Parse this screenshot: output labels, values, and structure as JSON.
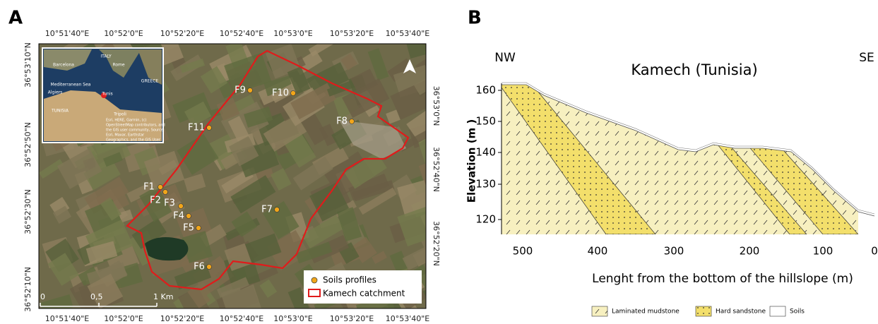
{
  "panel_a": {
    "label": "A",
    "top_labels": [
      "10°51'40\"E",
      "10°52'0\"E",
      "10°52'20\"E",
      "10°52'40\"E",
      "10°53'0\"E",
      "10°53'20\"E",
      "10°53'40\"E"
    ],
    "bottom_labels": [
      "10°51'40\"E",
      "10°52'0\"E",
      "10°52'20\"E",
      "10°52'40\"E",
      "10°53'0\"E",
      "10°53'20\"E",
      "10°53'40\"E"
    ],
    "left_labels": [
      "36°53'10\"N",
      "36°52'50\"N",
      "36°52'30\"N",
      "36°52'10\"N"
    ],
    "right_labels": [
      "36°53'0\"N",
      "36°52'40\"N",
      "36°52'20\"N"
    ],
    "inset": {
      "labels": [
        "ITALY",
        "Barcelona",
        "Rome",
        "GREECE",
        "Mediterranean Sea",
        "Algiers",
        "Tunis",
        "TUNISIA",
        "Tripoli"
      ],
      "attribution": [
        "Esri, HERE, Garmin, (c)",
        "OpenStreetMap contributors, and",
        "the GIS user community, Source:",
        "Esri, Maxar, Earthstar",
        "Geographics, and the GIS User"
      ]
    },
    "sites": [
      "F1",
      "F2",
      "F3",
      "F4",
      "F5",
      "F6",
      "F7",
      "F8",
      "F9",
      "F10",
      "F11"
    ],
    "legend": {
      "sites": "Soils profiles",
      "catchment": "Kamech catchment"
    },
    "scale": [
      "0",
      "0,5",
      "1 Km"
    ]
  },
  "panel_b": {
    "label": "B",
    "left_end": "NW",
    "right_end": "SE",
    "title": "Kamech (Tunisia)",
    "y_label": "Elevation (m )",
    "x_label": "Lenght from the bottom of the hillslope (m)",
    "yticks": [
      160,
      150,
      140,
      130,
      120
    ],
    "xticks": [
      500,
      400,
      300,
      200,
      100,
      0
    ],
    "legend": [
      "Laminated mudstone",
      "Hard sandstone",
      "Soils"
    ]
  }
}
